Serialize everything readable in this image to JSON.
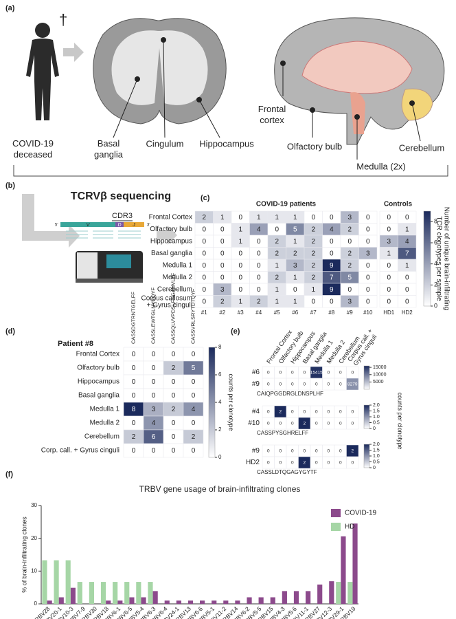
{
  "panels": {
    "a": "(a)",
    "b": "(b)",
    "c": "(c)",
    "d": "(d)",
    "e": "(e)",
    "f": "(f)"
  },
  "diagram_a": {
    "dagger": "†",
    "deceased": [
      "COVID-19",
      "deceased"
    ],
    "basal": [
      "Basal",
      "ganglia"
    ],
    "cingulum": "Cingulum",
    "hippocampus": "Hippocampus",
    "frontal": [
      "Frontal",
      "cortex"
    ],
    "olfactory": "Olfactory bulb",
    "medulla": "Medulla (2x)",
    "cerebellum": "Cerebellum"
  },
  "diagram_b": {
    "title": "TCRVβ sequencing",
    "cdr3": "CDR3",
    "v": "V",
    "d": "D",
    "j": "J",
    "five": "5'",
    "three": "3'"
  },
  "chart_data": [
    {
      "type": "heatmap",
      "groups": [
        {
          "label": "COVID-19 patients",
          "columns": [
            "#1",
            "#2",
            "#3",
            "#4",
            "#5",
            "#6",
            "#7",
            "#8",
            "#9",
            "#10"
          ]
        },
        {
          "label": "Controls",
          "columns": [
            "HD1",
            "HD2"
          ]
        }
      ],
      "rows": [
        "Frontal Cortex",
        "Olfactory bulb",
        "Hippocampus",
        "Basal ganglia",
        "Medulla 1",
        "Medulla 2",
        "Cerebellum",
        [
          "Corpus callosum",
          "+ Gyrus cinguli"
        ]
      ],
      "values": [
        [
          2,
          1,
          0,
          1,
          1,
          1,
          0,
          0,
          3,
          0,
          0,
          0
        ],
        [
          0,
          0,
          1,
          4,
          0,
          5,
          2,
          4,
          2,
          0,
          0,
          1
        ],
        [
          0,
          0,
          1,
          0,
          2,
          1,
          2,
          0,
          0,
          0,
          3,
          4
        ],
        [
          0,
          0,
          0,
          0,
          2,
          2,
          2,
          0,
          2,
          3,
          1,
          7
        ],
        [
          0,
          0,
          0,
          0,
          1,
          3,
          2,
          9,
          2,
          0,
          0,
          1
        ],
        [
          0,
          0,
          0,
          0,
          2,
          1,
          2,
          7,
          5,
          0,
          0,
          0
        ],
        [
          0,
          3,
          0,
          0,
          1,
          0,
          1,
          9,
          0,
          0,
          0,
          0
        ],
        [
          0,
          2,
          1,
          2,
          1,
          1,
          0,
          0,
          3,
          0,
          0,
          0
        ]
      ],
      "clim": [
        0,
        9
      ],
      "cticks": [
        0,
        2,
        4,
        6,
        8
      ],
      "clabel": [
        "Number of unique brain-infiltrating",
        "TCR clonotypes per sample"
      ]
    },
    {
      "type": "heatmap",
      "title": "Patient #8",
      "columns": [
        "CASSDGTRNTGELFF",
        "CASSLEWTGLNYEQYF",
        "CASSQLVVPDSLFSGANVLTF",
        "CASSVRLSRYTDTQYF"
      ],
      "rows": [
        "Frontal Cortex",
        "Olfactory bulb",
        "Hippocampus",
        "Basal ganglia",
        "Medulla 1",
        "Medulla 2",
        "Cerebellum",
        "Corp. call. + Gyrus cinguli"
      ],
      "values": [
        [
          0,
          0,
          0,
          0
        ],
        [
          0,
          0,
          2,
          5
        ],
        [
          0,
          0,
          0,
          0
        ],
        [
          0,
          0,
          0,
          0
        ],
        [
          8,
          3,
          2,
          4
        ],
        [
          0,
          4,
          0,
          0
        ],
        [
          2,
          6,
          0,
          2
        ],
        [
          0,
          0,
          0,
          0
        ]
      ],
      "clim": [
        0,
        8
      ],
      "cticks": [
        0,
        2,
        4,
        6,
        8
      ],
      "clabel": "counts per clonotype"
    },
    {
      "type": "heatmap-group",
      "columns": [
        "Frontal Cortex",
        "Olfactory bulb",
        "Hippocampus",
        "Basal ganglia",
        "Medulla 1",
        "Medulla 2",
        "Cerebellum",
        [
          "Corpus call. +",
          "Gyrus cinguli"
        ]
      ],
      "clabel": "counts per clonotype",
      "blocks": [
        {
          "rows": [
            "#6",
            "#9"
          ],
          "values": [
            [
              0,
              0,
              0,
              0,
              15415,
              0,
              0,
              0
            ],
            [
              0,
              0,
              0,
              0,
              0,
              0,
              0,
              8279
            ]
          ],
          "sequence": "CAIQPGGDRGLDNSPLHF",
          "clim": [
            0,
            16000
          ],
          "cticks": [
            5000,
            10000,
            15000
          ]
        },
        {
          "rows": [
            "#4",
            "#10"
          ],
          "values": [
            [
              0,
              2,
              0,
              0,
              0,
              0,
              0,
              0
            ],
            [
              0,
              0,
              0,
              2,
              0,
              0,
              0,
              0
            ]
          ],
          "sequence": "CASSPYSGHRELFF",
          "clim": [
            0,
            2
          ],
          "cticks": [
            0,
            {
              "value": 0.5,
              "label": "0.5"
            },
            {
              "value": 1,
              "label": "1.0"
            },
            {
              "value": 1.5,
              "label": "1.5"
            },
            {
              "value": 2,
              "label": "2.0"
            }
          ]
        },
        {
          "rows": [
            "#9",
            "HD2"
          ],
          "values": [
            [
              0,
              0,
              0,
              0,
              0,
              0,
              0,
              2
            ],
            [
              0,
              0,
              0,
              2,
              0,
              0,
              0,
              0
            ]
          ],
          "sequence": "CASSLDTQGAGYGYTF",
          "clim": [
            0,
            2
          ],
          "cticks": [
            0,
            {
              "value": 0.5,
              "label": "0.5"
            },
            {
              "value": 1,
              "label": "1.0"
            },
            {
              "value": 1.5,
              "label": "1.5"
            },
            {
              "value": 2,
              "label": "2.0"
            }
          ]
        }
      ]
    },
    {
      "type": "bar",
      "title": "TRBV gene usage of brain-infiltrating clones",
      "ylabel": "% of brain-infiltrating clones",
      "categories": [
        "TRBV28",
        "TRBV20-1",
        "TRBV10-3",
        "TRBV7-9",
        "TRBV30",
        "TRBV18",
        "TRBV6-1",
        "TRBV6-5",
        "TRBV5-4",
        "TRBV6-3",
        "TRBV6-4",
        "TRBV24-1",
        "TRBV13",
        "TRBV6-6",
        "TRBV5-1",
        "TRBV11-2",
        "TRBV14",
        "TRBV6-2",
        "TRBV5-5",
        "TRBV15",
        "TRBV4-3",
        "TRBV5-6",
        "TRBV11-1",
        "TRBV27",
        "TRBV12-3",
        "TRBV29-1",
        "TRBV19"
      ],
      "series": [
        {
          "name": "COVID-19",
          "color": "#8c4a8c",
          "values": [
            1,
            2,
            4.9,
            0,
            0,
            1,
            1,
            2,
            2,
            3.9,
            1,
            1,
            1,
            1,
            1,
            1,
            1,
            2,
            2,
            2,
            3.9,
            3.9,
            3.9,
            5.9,
            6.9,
            20.6,
            24.5
          ]
        },
        {
          "name": "HD",
          "color": "#a6d6a6",
          "values": [
            13.3,
            13.3,
            13.3,
            6.7,
            6.7,
            6.7,
            6.7,
            6.7,
            6.7,
            6.7,
            0,
            0,
            0,
            0,
            0,
            0,
            0,
            0,
            0,
            0,
            0,
            0,
            0,
            0,
            0,
            6.7,
            6.7
          ]
        }
      ],
      "ylim": [
        0,
        30
      ],
      "yticks": [
        0,
        10,
        20,
        30
      ],
      "legend": "top-right"
    }
  ]
}
